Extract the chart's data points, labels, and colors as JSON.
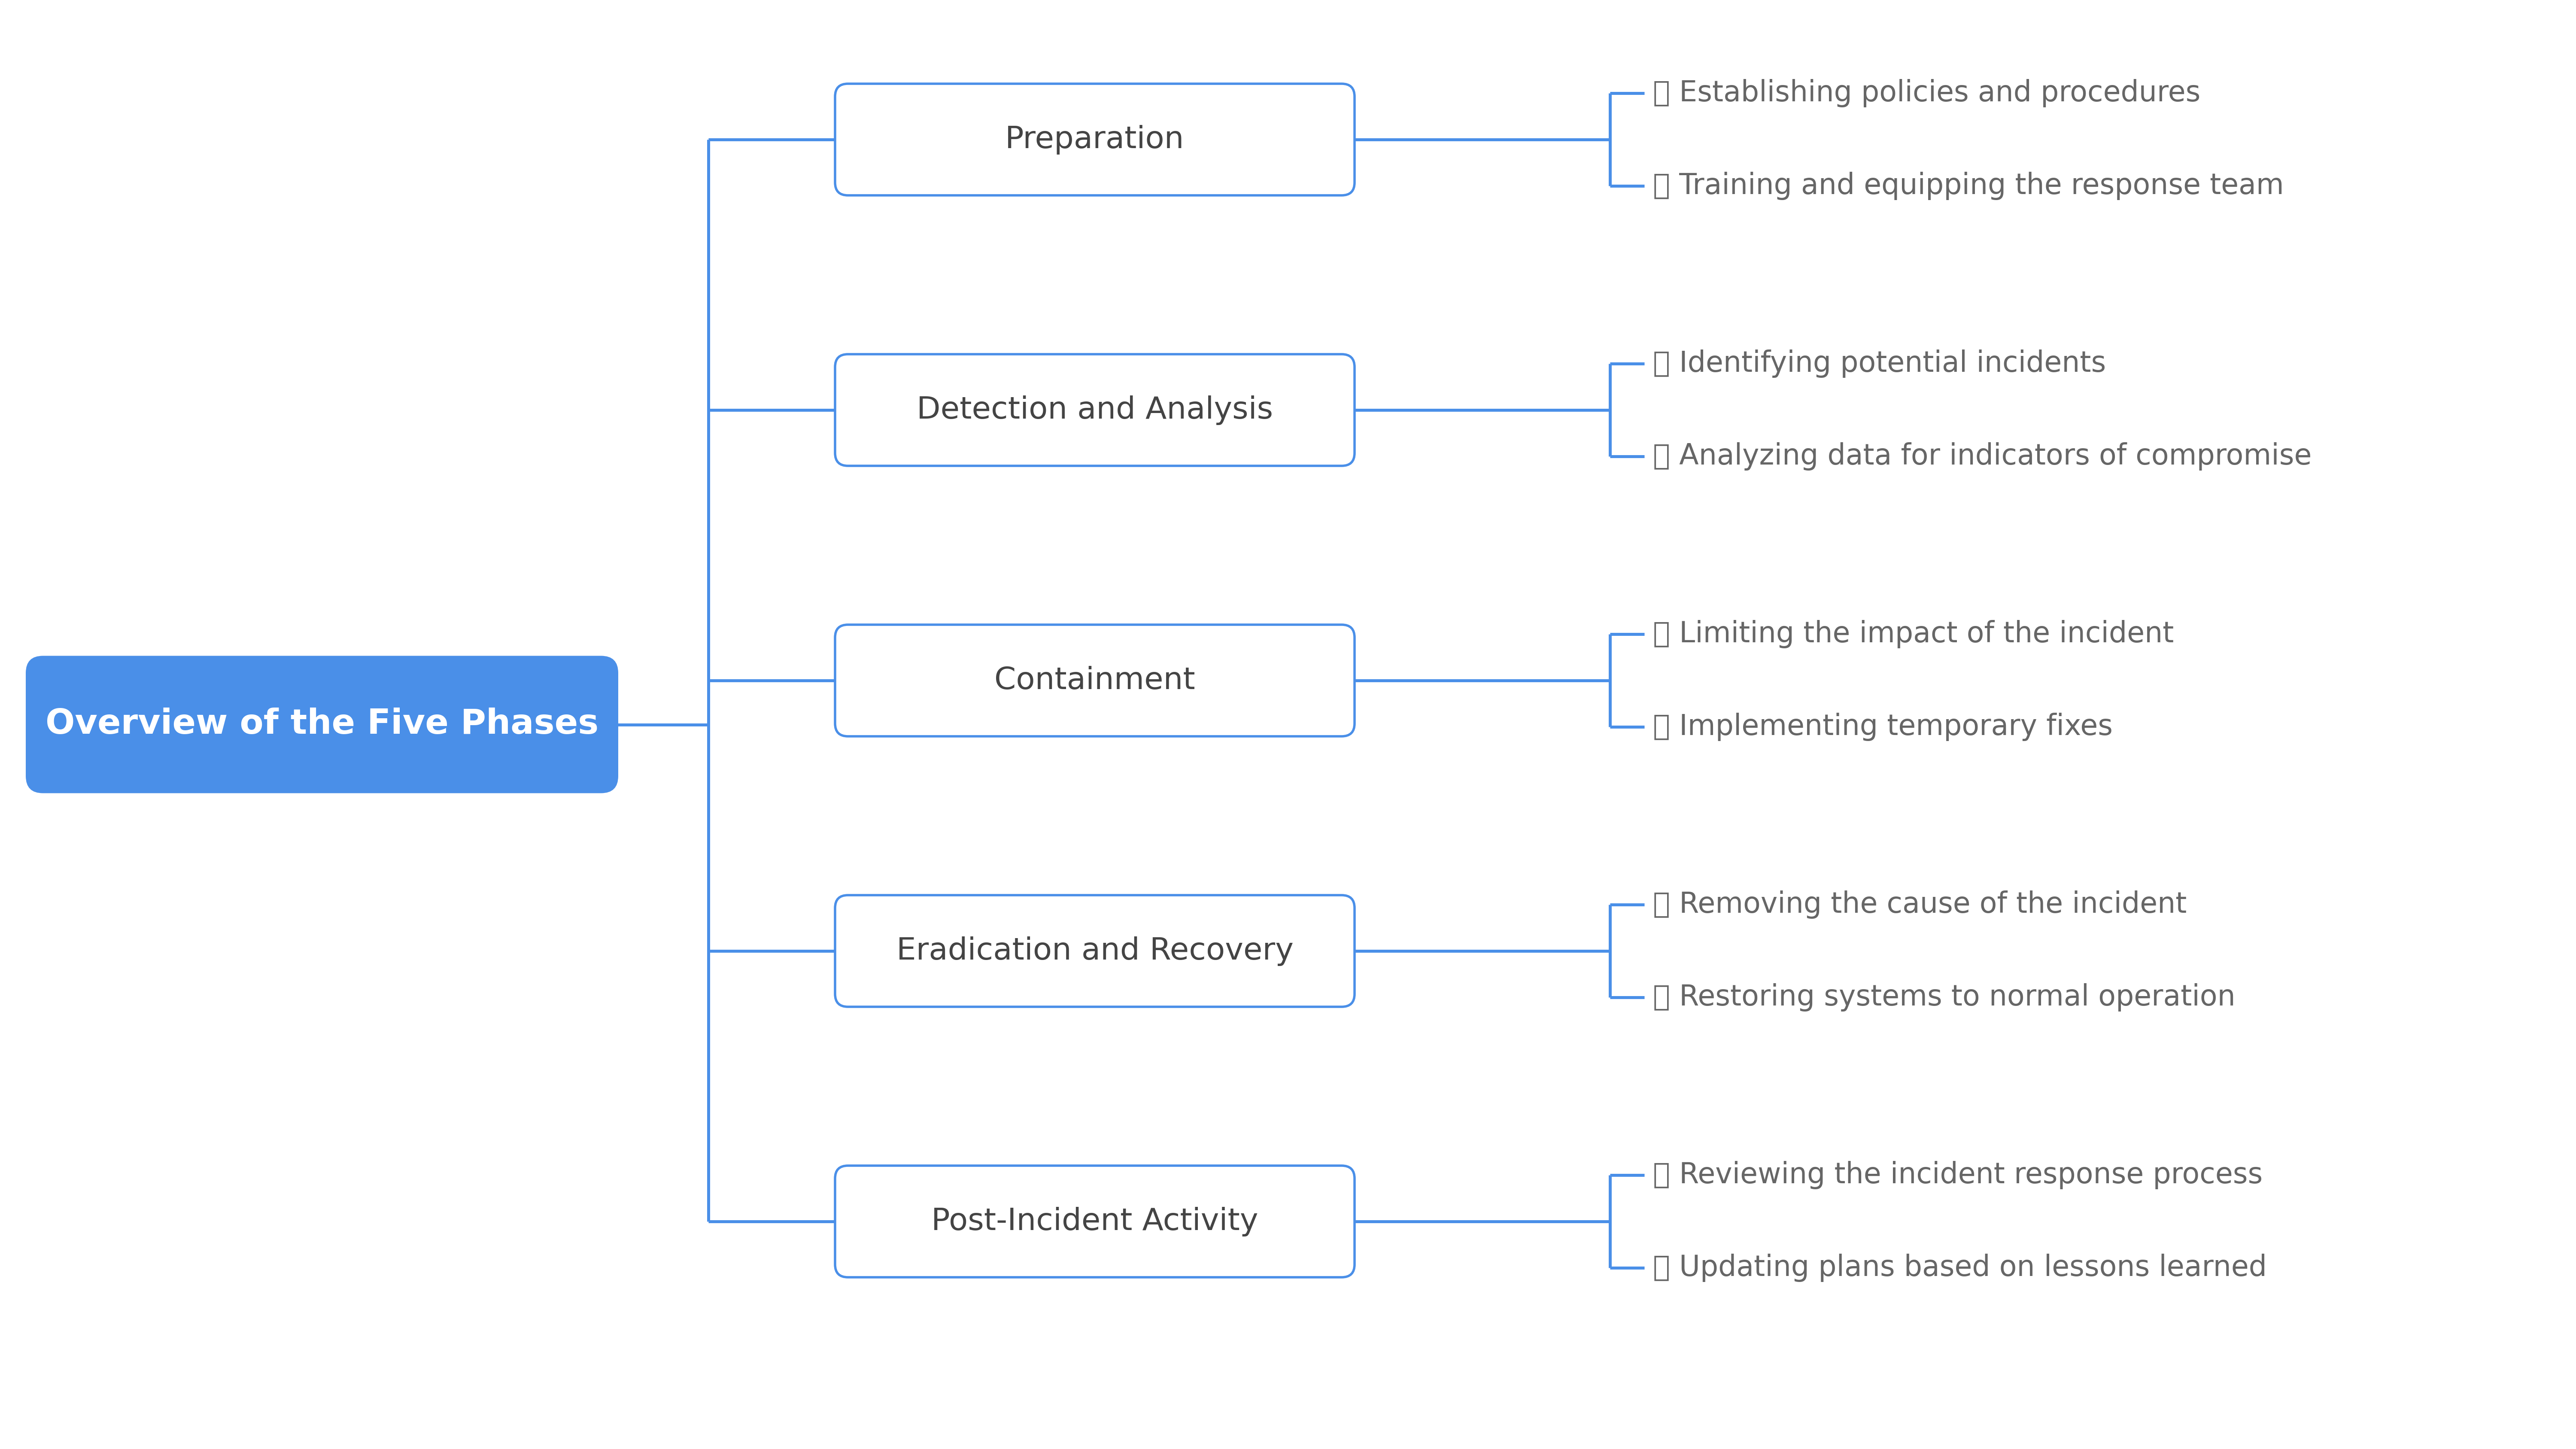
{
  "title": "Overview of the Five Phases",
  "title_bg_color": "#4A8FE8",
  "title_text_color": "#FFFFFF",
  "phases": [
    {
      "name": "Preparation",
      "items": [
        "🔧 Establishing policies and procedures",
        "📚 Training and equipping the response team"
      ]
    },
    {
      "name": "Detection and Analysis",
      "items": [
        "🔍 Identifying potential incidents",
        "📊 Analyzing data for indicators of compromise"
      ]
    },
    {
      "name": "Containment",
      "items": [
        "🚧 Limiting the impact of the incident",
        "🔒 Implementing temporary fixes"
      ]
    },
    {
      "name": "Eradication and Recovery",
      "items": [
        "🗑 Removing the cause of the incident",
        "🔄 Restoring systems to normal operation"
      ]
    },
    {
      "name": "Post-Incident Activity",
      "items": [
        "📋 Reviewing the incident response process",
        "🗒 Updating plans based on lessons learned"
      ]
    }
  ],
  "background_color": "#FFFFFF",
  "line_color": "#4A8FE8",
  "phase_box_color": "#FFFFFF",
  "phase_border_color": "#4A8FE8",
  "phase_text_color": "#444444",
  "item_text_color": "#666666",
  "line_width": 5.0,
  "title_fontsize": 58,
  "phase_fontsize": 52,
  "item_fontsize": 48
}
